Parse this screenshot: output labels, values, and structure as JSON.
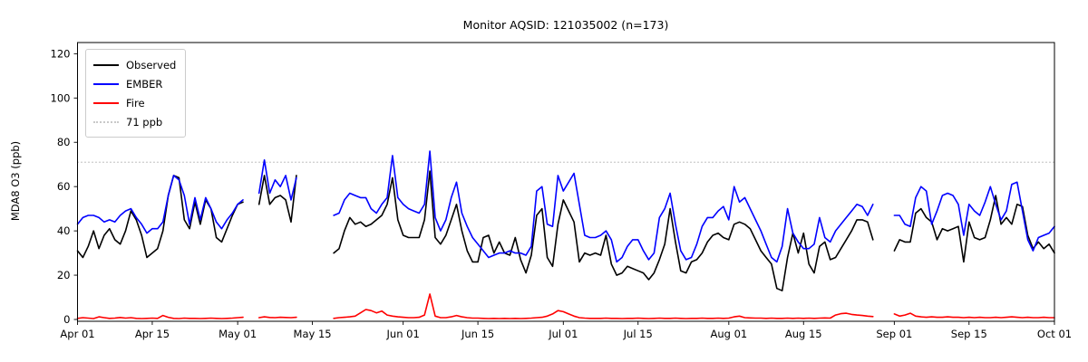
{
  "title": "Monitor AQSID: 121035002 (n=173)",
  "axes": {
    "ylabel": "MDA8 O3 (ppb)",
    "yticks": [
      0,
      20,
      40,
      60,
      80,
      100,
      120
    ],
    "ylim": [
      0,
      125
    ],
    "xtick_labels": [
      "Apr 01",
      "Apr 15",
      "May 01",
      "May 15",
      "Jun 01",
      "Jun 15",
      "Jul 01",
      "Jul 15",
      "Aug 01",
      "Aug 15",
      "Sep 01",
      "Sep 15",
      "Oct 01"
    ],
    "xtick_days": [
      0,
      14,
      30,
      44,
      61,
      75,
      91,
      105,
      122,
      136,
      153,
      167,
      183
    ]
  },
  "legend": {
    "position": "upper-left",
    "border_color": "#cccccc"
  },
  "chart_data": {
    "type": "line",
    "x_axis": "daily index, day 0 = Apr 01, day 183 = Oct 01",
    "n_observations": 173,
    "grid": false,
    "threshold": {
      "value": 71,
      "label": "71 ppb",
      "color": "#c9c9c9",
      "style": "dotted"
    },
    "series": [
      {
        "name": "Observed",
        "color": "#000000",
        "values": [
          31,
          28,
          33,
          40,
          32,
          38,
          41,
          36,
          34,
          40,
          49,
          45,
          38,
          28,
          30,
          32,
          40,
          56,
          65,
          64,
          45,
          41,
          53,
          43,
          54,
          50,
          37,
          35,
          41,
          47,
          52,
          53,
          null,
          null,
          52,
          65,
          52,
          55,
          56,
          54,
          44,
          65,
          null,
          null,
          null,
          null,
          null,
          null,
          30,
          32,
          40,
          46,
          43,
          44,
          42,
          43,
          45,
          47,
          52,
          64,
          45,
          38,
          37,
          37,
          37,
          45,
          67,
          37,
          34,
          38,
          45,
          52,
          40,
          31,
          26,
          26,
          37,
          38,
          30,
          35,
          30,
          29,
          37,
          27,
          21,
          29,
          47,
          50,
          28,
          24,
          43,
          54,
          49,
          44,
          26,
          30,
          29,
          30,
          29,
          38,
          25,
          20,
          21,
          24,
          23,
          22,
          21,
          18,
          21,
          27,
          34,
          50,
          35,
          22,
          21,
          26,
          27,
          30,
          35,
          38,
          39,
          37,
          36,
          43,
          44,
          43,
          41,
          36,
          31,
          28,
          25,
          14,
          13,
          28,
          39,
          30,
          39,
          25,
          21,
          33,
          35,
          27,
          28,
          32,
          36,
          40,
          45,
          45,
          44,
          36,
          null,
          null,
          null,
          31,
          36,
          35,
          35,
          48,
          50,
          46,
          44,
          36,
          41,
          40,
          41,
          42,
          26,
          44,
          37,
          36,
          37,
          45,
          56,
          43,
          46,
          43,
          52,
          51,
          38,
          32,
          35,
          32,
          34,
          30
        ]
      },
      {
        "name": "EMBER",
        "color": "#0000ff",
        "values": [
          43,
          46,
          47,
          47,
          46,
          44,
          45,
          44,
          47,
          49,
          50,
          46,
          43,
          39,
          41,
          41,
          44,
          56,
          65,
          63,
          56,
          43,
          55,
          45,
          55,
          50,
          44,
          41,
          45,
          48,
          52,
          54,
          null,
          null,
          57,
          72,
          57,
          63,
          60,
          65,
          54,
          64,
          null,
          null,
          null,
          null,
          null,
          null,
          47,
          48,
          54,
          57,
          56,
          55,
          55,
          50,
          48,
          52,
          55,
          74,
          55,
          52,
          50,
          49,
          48,
          52,
          76,
          46,
          40,
          45,
          55,
          62,
          48,
          42,
          37,
          34,
          31,
          28,
          29,
          30,
          30,
          31,
          30,
          30,
          29,
          33,
          58,
          60,
          43,
          42,
          65,
          58,
          62,
          66,
          52,
          38,
          37,
          37,
          38,
          40,
          36,
          26,
          28,
          33,
          36,
          36,
          31,
          27,
          30,
          46,
          50,
          57,
          43,
          31,
          27,
          28,
          34,
          42,
          46,
          46,
          49,
          51,
          45,
          60,
          53,
          55,
          50,
          45,
          40,
          34,
          28,
          26,
          33,
          50,
          39,
          35,
          32,
          32,
          34,
          46,
          37,
          35,
          40,
          43,
          46,
          49,
          52,
          51,
          47,
          52,
          null,
          null,
          null,
          47,
          47,
          43,
          42,
          55,
          60,
          58,
          43,
          49,
          56,
          57,
          56,
          52,
          38,
          52,
          49,
          47,
          53,
          60,
          52,
          45,
          49,
          61,
          62,
          49,
          36,
          31,
          37,
          38,
          39,
          42
        ]
      },
      {
        "name": "Fire",
        "color": "#ff0000",
        "values": [
          0.5,
          0.8,
          0.6,
          0.4,
          1.2,
          0.8,
          0.5,
          0.6,
          0.9,
          0.6,
          0.8,
          0.5,
          0.4,
          0.5,
          0.6,
          0.5,
          1.8,
          1.0,
          0.5,
          0.4,
          0.6,
          0.5,
          0.5,
          0.4,
          0.5,
          0.6,
          0.5,
          0.4,
          0.5,
          0.6,
          0.8,
          1.0,
          null,
          null,
          0.8,
          1.2,
          0.9,
          0.8,
          1.0,
          0.9,
          0.8,
          1.0,
          null,
          null,
          null,
          null,
          null,
          null,
          0.5,
          0.8,
          1.0,
          1.2,
          1.5,
          3.0,
          4.5,
          4.0,
          3.0,
          3.8,
          2.0,
          1.5,
          1.2,
          1.0,
          0.8,
          0.8,
          1.0,
          2.0,
          11.5,
          1.5,
          0.8,
          0.8,
          1.2,
          1.8,
          1.2,
          0.8,
          0.6,
          0.6,
          0.5,
          0.4,
          0.5,
          0.4,
          0.5,
          0.4,
          0.5,
          0.4,
          0.5,
          0.6,
          0.8,
          1.0,
          1.5,
          2.5,
          4.0,
          3.5,
          2.5,
          1.5,
          0.8,
          0.6,
          0.5,
          0.5,
          0.5,
          0.6,
          0.5,
          0.5,
          0.4,
          0.5,
          0.5,
          0.6,
          0.5,
          0.4,
          0.5,
          0.6,
          0.5,
          0.5,
          0.6,
          0.5,
          0.4,
          0.5,
          0.5,
          0.6,
          0.5,
          0.5,
          0.6,
          0.5,
          0.6,
          1.2,
          1.5,
          0.8,
          0.7,
          0.6,
          0.6,
          0.5,
          0.6,
          0.5,
          0.5,
          0.6,
          0.5,
          0.6,
          0.5,
          0.6,
          0.5,
          0.6,
          0.7,
          0.6,
          2.0,
          2.6,
          2.8,
          2.3,
          2.0,
          1.8,
          1.5,
          1.3,
          null,
          null,
          null,
          2.5,
          1.5,
          2.0,
          2.8,
          1.5,
          1.2,
          1.0,
          1.2,
          1.0,
          1.0,
          1.2,
          1.0,
          1.0,
          0.8,
          1.0,
          0.8,
          1.0,
          0.8,
          0.8,
          1.0,
          0.8,
          1.0,
          1.2,
          1.0,
          0.8,
          1.0,
          0.8,
          0.8,
          1.0,
          0.8,
          0.8
        ]
      }
    ]
  }
}
